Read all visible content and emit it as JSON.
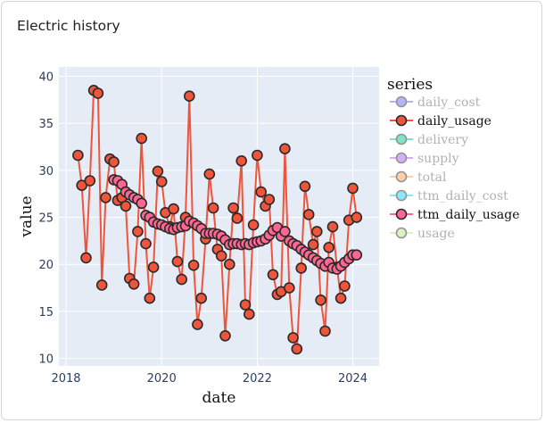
{
  "card": {
    "title": "Electric history"
  },
  "chart_data": {
    "type": "line",
    "xlabel": "date",
    "ylabel": "value",
    "x_range": [
      2017.85,
      2024.55
    ],
    "ylim": [
      9.2,
      41
    ],
    "x_ticks": [
      2018,
      2020,
      2022,
      2024
    ],
    "y_ticks": [
      10,
      15,
      20,
      25,
      30,
      35,
      40
    ],
    "grid": true,
    "legend": {
      "title": "series",
      "placement": "right",
      "entries": [
        {
          "name": "daily_cost",
          "color": "#636efa",
          "active": false
        },
        {
          "name": "daily_usage",
          "color": "#ef553b",
          "active": true
        },
        {
          "name": "delivery",
          "color": "#00cc96",
          "active": false
        },
        {
          "name": "supply",
          "color": "#ab63fa",
          "active": false
        },
        {
          "name": "total",
          "color": "#ffa15a",
          "active": false
        },
        {
          "name": "ttm_daily_cost",
          "color": "#19d3f3",
          "active": false
        },
        {
          "name": "ttm_daily_usage",
          "color": "#ff6692",
          "active": true
        },
        {
          "name": "usage",
          "color": "#b6e880",
          "active": false
        }
      ]
    },
    "series": [
      {
        "name": "daily_usage",
        "color": "#ef553b",
        "x": [
          2018.25,
          2018.33,
          2018.42,
          2018.5,
          2018.58,
          2018.67,
          2018.75,
          2018.83,
          2018.92,
          2019.0,
          2019.08,
          2019.17,
          2019.25,
          2019.33,
          2019.42,
          2019.5,
          2019.58,
          2019.67,
          2019.75,
          2019.83,
          2019.92,
          2020.0,
          2020.08,
          2020.17,
          2020.25,
          2020.33,
          2020.42,
          2020.5,
          2020.58,
          2020.67,
          2020.75,
          2020.83,
          2020.92,
          2021.0,
          2021.08,
          2021.17,
          2021.25,
          2021.33,
          2021.42,
          2021.5,
          2021.58,
          2021.67,
          2021.75,
          2021.83,
          2021.92,
          2022.0,
          2022.08,
          2022.17,
          2022.25,
          2022.33,
          2022.42,
          2022.5,
          2022.58,
          2022.67,
          2022.75,
          2022.83,
          2022.92,
          2023.0,
          2023.08,
          2023.17,
          2023.25,
          2023.33,
          2023.42,
          2023.5,
          2023.58,
          2023.67,
          2023.75,
          2023.83,
          2023.92,
          2024.0,
          2024.08
        ],
        "y": [
          31.6,
          28.4,
          20.7,
          28.9,
          38.5,
          38.2,
          17.8,
          27.1,
          31.2,
          30.9,
          26.8,
          27.1,
          26.2,
          18.5,
          17.9,
          23.5,
          33.4,
          22.2,
          16.4,
          19.7,
          29.9,
          28.8,
          25.5,
          24.0,
          25.9,
          20.3,
          18.4,
          25.0,
          37.9,
          19.9,
          13.6,
          16.4,
          22.7,
          29.6,
          26.0,
          21.6,
          20.9,
          12.4,
          20.0,
          26.0,
          24.9,
          31.0,
          15.7,
          14.7,
          24.2,
          31.6,
          27.7,
          26.2,
          26.9,
          18.9,
          16.8,
          17.1,
          32.3,
          17.5,
          12.2,
          11.0,
          19.6,
          28.3,
          25.3,
          22.1,
          23.5,
          16.2,
          12.9,
          21.8,
          24.0,
          19.7,
          16.4,
          17.7,
          24.7,
          28.1,
          25.0
        ]
      },
      {
        "name": "ttm_daily_usage",
        "color": "#ff6692",
        "x": [
          2019.0,
          2019.08,
          2019.17,
          2019.25,
          2019.33,
          2019.42,
          2019.5,
          2019.58,
          2019.67,
          2019.75,
          2019.83,
          2019.92,
          2020.0,
          2020.08,
          2020.17,
          2020.25,
          2020.33,
          2020.42,
          2020.5,
          2020.58,
          2020.67,
          2020.75,
          2020.83,
          2020.92,
          2021.0,
          2021.08,
          2021.17,
          2021.25,
          2021.33,
          2021.42,
          2021.5,
          2021.58,
          2021.67,
          2021.75,
          2021.83,
          2021.92,
          2022.0,
          2022.08,
          2022.17,
          2022.25,
          2022.33,
          2022.42,
          2022.5,
          2022.58,
          2022.67,
          2022.75,
          2022.83,
          2022.92,
          2023.0,
          2023.08,
          2023.17,
          2023.25,
          2023.33,
          2023.42,
          2023.5,
          2023.58,
          2023.67,
          2023.75,
          2023.83,
          2023.92,
          2024.0,
          2024.08
        ],
        "y": [
          29.0,
          28.9,
          28.5,
          27.7,
          27.4,
          27.1,
          26.9,
          26.5,
          25.2,
          25.0,
          24.5,
          24.3,
          24.2,
          24.0,
          23.8,
          23.7,
          23.9,
          24.0,
          24.1,
          24.6,
          24.4,
          24.1,
          23.8,
          23.3,
          23.3,
          23.3,
          23.2,
          23.0,
          22.6,
          22.1,
          22.2,
          22.2,
          22.1,
          22.2,
          22.1,
          22.3,
          22.4,
          22.5,
          22.7,
          23.1,
          23.6,
          23.9,
          23.0,
          23.5,
          22.5,
          22.2,
          22.0,
          21.6,
          21.3,
          21.0,
          20.7,
          20.4,
          20.1,
          19.8,
          20.2,
          19.6,
          19.5,
          19.8,
          20.2,
          20.6,
          21.0,
          21.0
        ]
      }
    ]
  }
}
